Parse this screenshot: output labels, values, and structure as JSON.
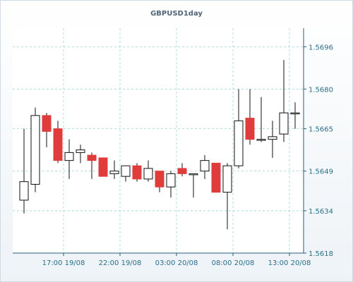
{
  "chart_data": {
    "type": "candlestick",
    "title": "GBPUSD1day",
    "xlabel": "",
    "ylabel": "",
    "ylim": [
      1.5618,
      1.5703
    ],
    "y_ticks": [
      "1.5618",
      "1.5634",
      "1.5649",
      "1.5665",
      "1.5680",
      "1.5696"
    ],
    "x_ticks": [
      {
        "index": 3.5,
        "label": "17:00 19/08"
      },
      {
        "index": 8.5,
        "label": "22:00 19/08"
      },
      {
        "index": 13.5,
        "label": "03:00 20/08"
      },
      {
        "index": 18.5,
        "label": "08:00 20/08"
      },
      {
        "index": 23.5,
        "label": "13:00 20/08"
      }
    ],
    "colors": {
      "up": "#ffffff",
      "down": "#e03c3c",
      "border": "#111111",
      "grid": "#9ad4d8",
      "axis": "#1f5f7a"
    },
    "grid": true,
    "candles": [
      {
        "open": 1.5638,
        "high": 1.5665,
        "low": 1.5633,
        "close": 1.5645
      },
      {
        "open": 1.5644,
        "high": 1.5673,
        "low": 1.5641,
        "close": 1.567
      },
      {
        "open": 1.567,
        "high": 1.5671,
        "low": 1.5658,
        "close": 1.5664
      },
      {
        "open": 1.5665,
        "high": 1.5668,
        "low": 1.5652,
        "close": 1.5653
      },
      {
        "open": 1.5653,
        "high": 1.5661,
        "low": 1.5646,
        "close": 1.5656
      },
      {
        "open": 1.5656,
        "high": 1.5659,
        "low": 1.5652,
        "close": 1.5657
      },
      {
        "open": 1.5655,
        "high": 1.5656,
        "low": 1.5646,
        "close": 1.5653
      },
      {
        "open": 1.5654,
        "high": 1.5654,
        "low": 1.5647,
        "close": 1.5647
      },
      {
        "open": 1.5648,
        "high": 1.5653,
        "low": 1.5646,
        "close": 1.5649
      },
      {
        "open": 1.5647,
        "high": 1.5651,
        "low": 1.5645,
        "close": 1.5651
      },
      {
        "open": 1.5651,
        "high": 1.5652,
        "low": 1.5645,
        "close": 1.5646
      },
      {
        "open": 1.5646,
        "high": 1.5653,
        "low": 1.5645,
        "close": 1.565
      },
      {
        "open": 1.5649,
        "high": 1.5649,
        "low": 1.5641,
        "close": 1.5643
      },
      {
        "open": 1.5643,
        "high": 1.5649,
        "low": 1.5639,
        "close": 1.5648
      },
      {
        "open": 1.565,
        "high": 1.5652,
        "low": 1.5647,
        "close": 1.5648
      },
      {
        "open": 1.5648,
        "high": 1.5648,
        "low": 1.5639,
        "close": 1.5648
      },
      {
        "open": 1.5649,
        "high": 1.5655,
        "low": 1.5646,
        "close": 1.5653
      },
      {
        "open": 1.5652,
        "high": 1.5652,
        "low": 1.5641,
        "close": 1.5641
      },
      {
        "open": 1.5641,
        "high": 1.5652,
        "low": 1.5627,
        "close": 1.5651
      },
      {
        "open": 1.5651,
        "high": 1.568,
        "low": 1.565,
        "close": 1.5668
      },
      {
        "open": 1.5669,
        "high": 1.568,
        "low": 1.5659,
        "close": 1.5661
      },
      {
        "open": 1.5661,
        "high": 1.5677,
        "low": 1.566,
        "close": 1.5661
      },
      {
        "open": 1.5661,
        "high": 1.5668,
        "low": 1.5654,
        "close": 1.5662
      },
      {
        "open": 1.5663,
        "high": 1.5691,
        "low": 1.566,
        "close": 1.5671
      },
      {
        "open": 1.5671,
        "high": 1.5675,
        "low": 1.5665,
        "close": 1.5671
      }
    ]
  }
}
